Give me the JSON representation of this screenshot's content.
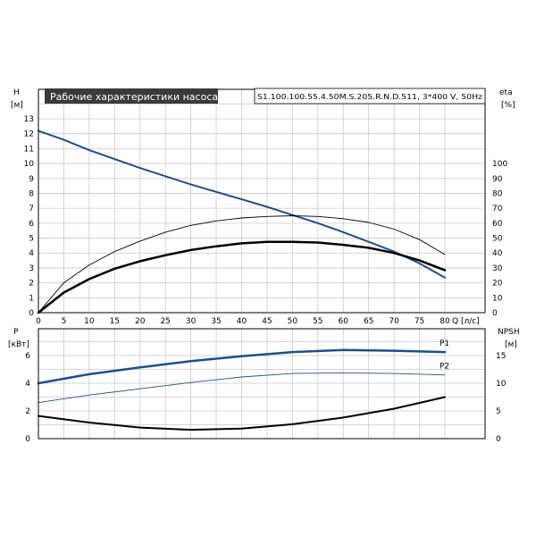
{
  "chart_data": [
    {
      "type": "line",
      "title": "Рабочие характеристики насоса",
      "subtitle": "S1.100.100.55.4.50M.S.205.R.N.D.511, 3*400 V, 50Hz",
      "xlabel": "Q [л/с]",
      "xlim": [
        0,
        80
      ],
      "x_ticks": [
        "0",
        "5",
        "10",
        "15",
        "20",
        "25",
        "30",
        "35",
        "40",
        "45",
        "50",
        "55",
        "60",
        "65",
        "70",
        "75",
        "80"
      ],
      "y_left": {
        "label": "H",
        "unit": "[м]",
        "lim": [
          0,
          13
        ],
        "ticks": [
          "0",
          "1",
          "2",
          "3",
          "4",
          "5",
          "6",
          "7",
          "8",
          "9",
          "10",
          "11",
          "12",
          "13"
        ]
      },
      "y_right": {
        "label": "eta",
        "unit": "[%]",
        "lim": [
          0,
          130
        ],
        "ticks": [
          "0",
          "10",
          "20",
          "30",
          "40",
          "50",
          "60",
          "70",
          "80",
          "90",
          "100"
        ]
      },
      "grid": true,
      "series": [
        {
          "axis": "left",
          "color": "#1e4f8c",
          "x": [
            0,
            5,
            10,
            15,
            20,
            25,
            30,
            35,
            40,
            45,
            50,
            55,
            60,
            65,
            70,
            75,
            80
          ],
          "values": [
            12.2,
            11.6,
            10.9,
            10.3,
            9.7,
            9.15,
            8.6,
            8.1,
            7.6,
            7.1,
            6.55,
            6.0,
            5.4,
            4.75,
            4.1,
            3.3,
            2.35
          ]
        },
        {
          "axis": "right",
          "color": "#000000",
          "width": 2.5,
          "x": [
            0,
            5,
            10,
            15,
            20,
            25,
            30,
            35,
            40,
            45,
            50,
            55,
            60,
            65,
            70,
            75,
            80
          ],
          "values": [
            0,
            13.5,
            22.5,
            29.5,
            34.5,
            38.5,
            42,
            44.5,
            46.5,
            47.5,
            47.5,
            47,
            45.5,
            43.5,
            40,
            35,
            28.5
          ]
        },
        {
          "axis": "right",
          "color": "#000000",
          "width": 0.9,
          "x": [
            0,
            5,
            10,
            15,
            20,
            25,
            30,
            35,
            40,
            45,
            50,
            55,
            60,
            65,
            70,
            75,
            80
          ],
          "values": [
            0,
            20,
            32,
            41,
            48,
            54,
            58.5,
            61.5,
            63.5,
            64.5,
            65,
            64.5,
            63,
            60.5,
            56,
            49,
            39
          ]
        }
      ]
    },
    {
      "type": "line",
      "xlim": [
        0,
        80
      ],
      "y_left": {
        "label": "P",
        "unit": "[кВт]",
        "lim": [
          0,
          8
        ],
        "ticks": [
          "0",
          "2",
          "4",
          "6"
        ]
      },
      "y_right": {
        "label": "NPSH",
        "unit": "[м]",
        "lim": [
          0,
          20
        ],
        "ticks": [
          "0",
          "5",
          "10",
          "15"
        ]
      },
      "grid": true,
      "series": [
        {
          "name": "P1",
          "axis": "left",
          "color": "#1e4f8c",
          "width": 2.5,
          "x": [
            0,
            10,
            20,
            30,
            40,
            50,
            60,
            70,
            80
          ],
          "values": [
            4.0,
            4.65,
            5.15,
            5.6,
            5.95,
            6.25,
            6.4,
            6.35,
            6.25
          ]
        },
        {
          "name": "P2",
          "axis": "left",
          "color": "#1e4f8c",
          "width": 0.9,
          "x": [
            0,
            10,
            20,
            30,
            40,
            50,
            60,
            70,
            80
          ],
          "values": [
            2.6,
            3.15,
            3.6,
            4.05,
            4.45,
            4.7,
            4.75,
            4.7,
            4.6
          ]
        },
        {
          "axis": "right",
          "color": "#000000",
          "width": 2,
          "x": [
            0,
            10,
            20,
            30,
            40,
            50,
            60,
            70,
            80
          ],
          "values": [
            4.1,
            2.9,
            2.0,
            1.6,
            1.8,
            2.6,
            3.8,
            5.4,
            7.5
          ]
        }
      ]
    }
  ]
}
